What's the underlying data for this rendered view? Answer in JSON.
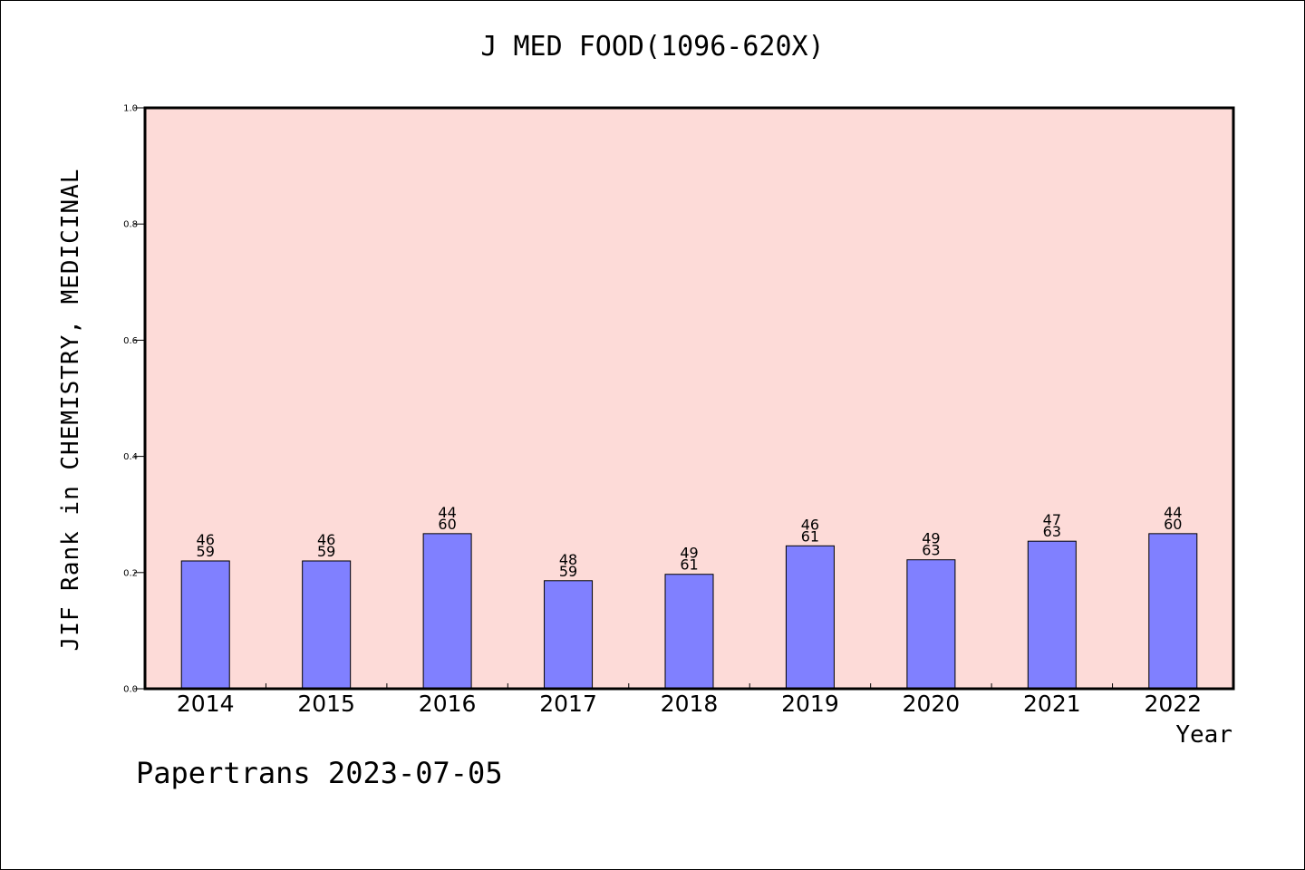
{
  "title": "J MED FOOD(1096-620X)",
  "ylabel": "JIF Rank in CHEMISTRY, MEDICINAL",
  "xlabel": "Year",
  "watermark": "Papertrans 2023-07-05",
  "colors": {
    "plot_background": "#fddbd8",
    "bar_fill": "#8080ff",
    "bar_stroke": "#000000"
  },
  "chart_data": {
    "type": "bar",
    "categories": [
      "2014",
      "2015",
      "2016",
      "2017",
      "2018",
      "2019",
      "2020",
      "2021",
      "2022"
    ],
    "values": [
      0.22,
      0.22,
      0.267,
      0.186,
      0.197,
      0.246,
      0.222,
      0.254,
      0.267
    ],
    "rank": [
      "46",
      "46",
      "44",
      "48",
      "49",
      "46",
      "49",
      "47",
      "44"
    ],
    "total": [
      "59",
      "59",
      "60",
      "59",
      "61",
      "61",
      "63",
      "63",
      "60"
    ],
    "ylim": [
      0,
      1
    ],
    "yticks": [
      "0.0",
      "0.2",
      "0.4",
      "0.6",
      "0.8",
      "1.0"
    ],
    "grid": false,
    "xlabel": "Year",
    "ylabel": "JIF Rank in CHEMISTRY, MEDICINAL",
    "title": "J MED FOOD(1096-620X)"
  }
}
